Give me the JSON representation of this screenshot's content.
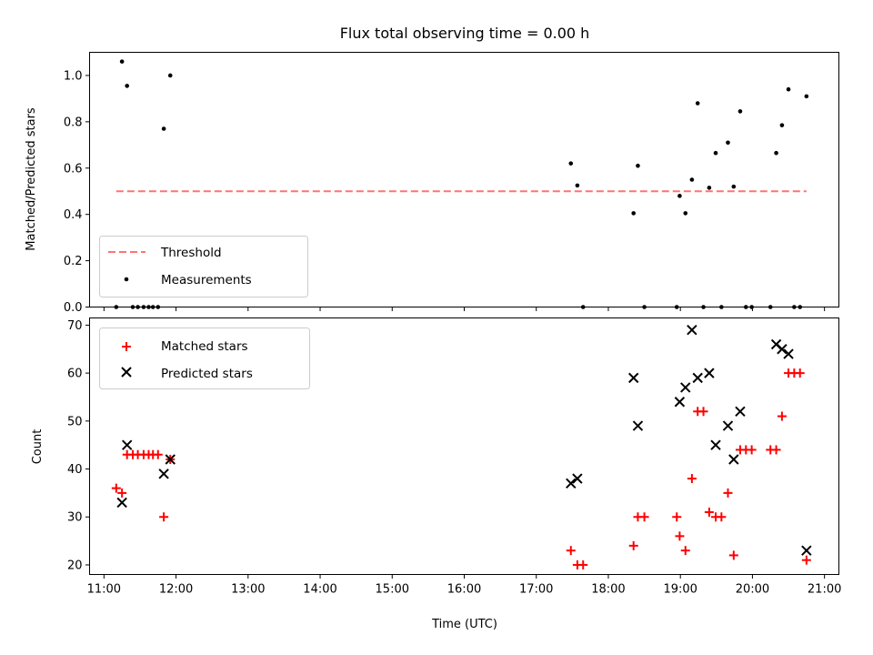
{
  "title": "Flux total observing time = 0.00 h",
  "x_ticks": [
    "11:00",
    "12:00",
    "13:00",
    "14:00",
    "15:00",
    "16:00",
    "17:00",
    "18:00",
    "19:00",
    "20:00",
    "21:00"
  ],
  "chart_data": [
    {
      "type": "scatter",
      "panel": "top",
      "ylabel": "Matched/Predicted stars",
      "xlim": [
        10.8,
        21.2
      ],
      "ylim": [
        0,
        1.1
      ],
      "yticks": [
        "0.0",
        "0.2",
        "0.4",
        "0.6",
        "0.8",
        "1.0"
      ],
      "legend_position": "lower-left",
      "threshold": {
        "name": "Threshold",
        "color": "#ff7373",
        "style": "dashed",
        "y": 0.5,
        "x_range": [
          11.17,
          20.75
        ]
      },
      "series": [
        {
          "name": "Measurements",
          "color": "#000000",
          "marker": "dot",
          "points": [
            [
              11.17,
              0.0
            ],
            [
              11.25,
              1.06
            ],
            [
              11.32,
              0.955
            ],
            [
              11.4,
              0.0
            ],
            [
              11.47,
              0.0
            ],
            [
              11.55,
              0.0
            ],
            [
              11.62,
              0.0
            ],
            [
              11.68,
              0.0
            ],
            [
              11.75,
              0.0
            ],
            [
              11.83,
              0.77
            ],
            [
              11.92,
              1.0
            ],
            [
              17.48,
              0.62
            ],
            [
              17.57,
              0.525
            ],
            [
              17.65,
              0.0
            ],
            [
              18.35,
              0.405
            ],
            [
              18.41,
              0.61
            ],
            [
              18.5,
              0.0
            ],
            [
              18.95,
              0.0
            ],
            [
              18.99,
              0.48
            ],
            [
              19.07,
              0.405
            ],
            [
              19.16,
              0.55
            ],
            [
              19.24,
              0.88
            ],
            [
              19.32,
              0.0
            ],
            [
              19.4,
              0.515
            ],
            [
              19.49,
              0.665
            ],
            [
              19.57,
              0.0
            ],
            [
              19.66,
              0.71
            ],
            [
              19.74,
              0.52
            ],
            [
              19.83,
              0.845
            ],
            [
              19.91,
              0.0
            ],
            [
              19.99,
              0.0
            ],
            [
              20.25,
              0.0
            ],
            [
              20.33,
              0.665
            ],
            [
              20.41,
              0.785
            ],
            [
              20.5,
              0.94
            ],
            [
              20.58,
              0.0
            ],
            [
              20.66,
              0.0
            ],
            [
              20.75,
              0.91
            ]
          ]
        }
      ]
    },
    {
      "type": "scatter",
      "panel": "bottom",
      "xlabel": "Time (UTC)",
      "ylabel": "Count",
      "xlim": [
        10.8,
        21.2
      ],
      "ylim": [
        18,
        71.5
      ],
      "yticks": [
        "20",
        "30",
        "40",
        "50",
        "60",
        "70"
      ],
      "legend_position": "upper-left",
      "series": [
        {
          "name": "Matched stars",
          "color": "#ff0000",
          "marker": "plus",
          "points": [
            [
              11.17,
              36
            ],
            [
              11.25,
              35
            ],
            [
              11.32,
              43
            ],
            [
              11.4,
              43
            ],
            [
              11.47,
              43
            ],
            [
              11.55,
              43
            ],
            [
              11.62,
              43
            ],
            [
              11.68,
              43
            ],
            [
              11.75,
              43
            ],
            [
              11.83,
              30
            ],
            [
              11.92,
              42
            ],
            [
              17.48,
              23
            ],
            [
              17.57,
              20
            ],
            [
              17.65,
              20
            ],
            [
              18.35,
              24
            ],
            [
              18.41,
              30
            ],
            [
              18.5,
              30
            ],
            [
              18.95,
              30
            ],
            [
              18.99,
              26
            ],
            [
              19.07,
              23
            ],
            [
              19.16,
              38
            ],
            [
              19.24,
              52
            ],
            [
              19.32,
              52
            ],
            [
              19.4,
              31
            ],
            [
              19.49,
              30
            ],
            [
              19.57,
              30
            ],
            [
              19.66,
              35
            ],
            [
              19.74,
              22
            ],
            [
              19.83,
              44
            ],
            [
              19.91,
              44
            ],
            [
              19.99,
              44
            ],
            [
              20.25,
              44
            ],
            [
              20.33,
              44
            ],
            [
              20.41,
              51
            ],
            [
              20.5,
              60
            ],
            [
              20.58,
              60
            ],
            [
              20.66,
              60
            ],
            [
              20.75,
              21
            ]
          ]
        },
        {
          "name": "Predicted stars",
          "color": "#000000",
          "marker": "x",
          "points": [
            [
              11.25,
              33
            ],
            [
              11.32,
              45
            ],
            [
              11.83,
              39
            ],
            [
              11.92,
              42
            ],
            [
              17.48,
              37
            ],
            [
              17.57,
              38
            ],
            [
              18.35,
              59
            ],
            [
              18.41,
              49
            ],
            [
              18.99,
              54
            ],
            [
              19.07,
              57
            ],
            [
              19.16,
              69
            ],
            [
              19.24,
              59
            ],
            [
              19.4,
              60
            ],
            [
              19.49,
              45
            ],
            [
              19.66,
              49
            ],
            [
              19.74,
              42
            ],
            [
              19.83,
              52
            ],
            [
              20.33,
              66
            ],
            [
              20.41,
              65
            ],
            [
              20.5,
              64
            ],
            [
              20.75,
              23
            ]
          ]
        }
      ]
    }
  ]
}
